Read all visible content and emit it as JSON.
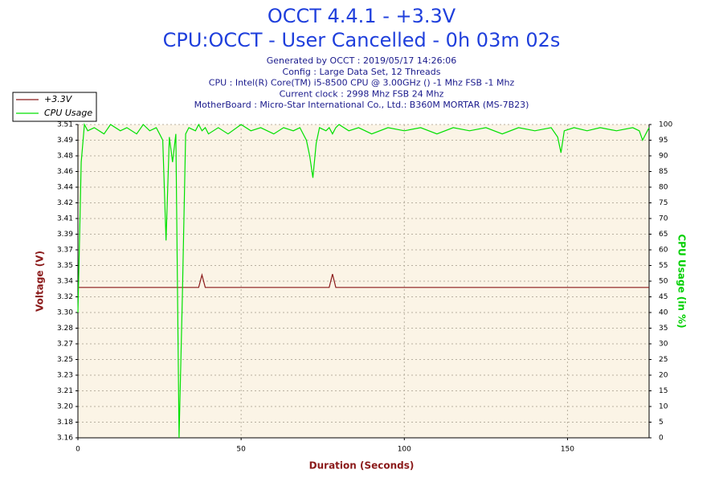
{
  "chart_data": {
    "type": "line",
    "title": "OCCT 4.4.1 - +3.3V",
    "subtitle": "CPU:OCCT - User Cancelled - 0h 03m 02s",
    "info": [
      "Generated by OCCT : 2019/05/17 14:26:06",
      "Config : Large Data Set, 12 Threads",
      "CPU : Intel(R) Core(TM) i5-8500 CPU @ 3.00GHz () -1 Mhz FSB -1 Mhz",
      "Current clock : 2998 Mhz FSB 24 Mhz",
      "MotherBoard : Micro-Star International Co., Ltd.: B360M MORTAR (MS-7B23)"
    ],
    "x_label": "Duration (Seconds)",
    "y_label": "Voltage (V)",
    "y2_label": "CPU Usage (in %)",
    "x": [
      0,
      1,
      2,
      3,
      5,
      8,
      10,
      13,
      15,
      18,
      20,
      22,
      24,
      25,
      26,
      27,
      28,
      29,
      30,
      31,
      32,
      33,
      34,
      36,
      37,
      38,
      39,
      40,
      43,
      46,
      50,
      53,
      56,
      60,
      63,
      66,
      68,
      70,
      71,
      72,
      73,
      74,
      76,
      77,
      78,
      79,
      80,
      83,
      86,
      90,
      95,
      100,
      105,
      110,
      115,
      120,
      125,
      130,
      135,
      140,
      145,
      147,
      148,
      149,
      152,
      156,
      160,
      165,
      170,
      172,
      173,
      174,
      175
    ],
    "series": [
      {
        "name": "+3.3V",
        "color": "#8b1a1a",
        "axis": "y",
        "values": [
          3.328,
          3.328,
          3.328,
          3.328,
          3.328,
          3.328,
          3.328,
          3.328,
          3.328,
          3.328,
          3.328,
          3.328,
          3.328,
          3.328,
          3.328,
          3.328,
          3.328,
          3.328,
          3.328,
          3.328,
          3.328,
          3.328,
          3.328,
          3.328,
          3.328,
          3.342,
          3.328,
          3.328,
          3.328,
          3.328,
          3.328,
          3.328,
          3.328,
          3.328,
          3.328,
          3.328,
          3.328,
          3.328,
          3.328,
          3.328,
          3.328,
          3.328,
          3.328,
          3.328,
          3.343,
          3.328,
          3.328,
          3.328,
          3.328,
          3.328,
          3.328,
          3.328,
          3.328,
          3.328,
          3.328,
          3.328,
          3.328,
          3.328,
          3.328,
          3.328,
          3.328,
          3.328,
          3.328,
          3.328,
          3.328,
          3.328,
          3.328,
          3.328,
          3.328,
          3.328,
          3.328,
          3.328,
          3.328
        ]
      },
      {
        "name": "CPU Usage",
        "color": "#00e000",
        "axis": "y2",
        "values": [
          40,
          88,
          100,
          98,
          99,
          97,
          100,
          98,
          99,
          97,
          100,
          98,
          99,
          97,
          95,
          63,
          96,
          88,
          97,
          0,
          45,
          97,
          99,
          98,
          100,
          98,
          99,
          97,
          99,
          97,
          100,
          98,
          99,
          97,
          99,
          98,
          99,
          95,
          90,
          83,
          94,
          99,
          98,
          99,
          97,
          99,
          100,
          98,
          99,
          97,
          99,
          98,
          99,
          97,
          99,
          98,
          99,
          97,
          99,
          98,
          99,
          96,
          91,
          98,
          99,
          98,
          99,
          98,
          99,
          98,
          95,
          97,
          99
        ]
      }
    ],
    "xlim": [
      0,
      175
    ],
    "xticks": [
      0,
      50,
      100,
      150
    ],
    "ylim": [
      3.16,
      3.51
    ],
    "yticks": [
      {
        "value": 3.16,
        "label": "3.16"
      },
      {
        "value": 3.1775,
        "label": "3.18"
      },
      {
        "value": 3.195,
        "label": "3.20"
      },
      {
        "value": 3.2125,
        "label": "3.21"
      },
      {
        "value": 3.23,
        "label": "3.23"
      },
      {
        "value": 3.2475,
        "label": "3.25"
      },
      {
        "value": 3.265,
        "label": "3.27"
      },
      {
        "value": 3.2825,
        "label": "3.28"
      },
      {
        "value": 3.3,
        "label": "3.30"
      },
      {
        "value": 3.3175,
        "label": "3.32"
      },
      {
        "value": 3.335,
        "label": "3.34"
      },
      {
        "value": 3.3525,
        "label": "3.35"
      },
      {
        "value": 3.37,
        "label": "3.37"
      },
      {
        "value": 3.3875,
        "label": "3.39"
      },
      {
        "value": 3.405,
        "label": "3.41"
      },
      {
        "value": 3.4225,
        "label": "3.42"
      },
      {
        "value": 3.44,
        "label": "3.44"
      },
      {
        "value": 3.4575,
        "label": "3.46"
      },
      {
        "value": 3.475,
        "label": "3.48"
      },
      {
        "value": 3.4925,
        "label": "3.49"
      },
      {
        "value": 3.51,
        "label": "3.51"
      }
    ],
    "y2lim": [
      0,
      100
    ],
    "y2ticks": [
      0,
      5,
      10,
      15,
      20,
      25,
      30,
      35,
      40,
      45,
      50,
      55,
      60,
      65,
      70,
      75,
      80,
      85,
      90,
      95,
      100
    ],
    "grid": true
  }
}
